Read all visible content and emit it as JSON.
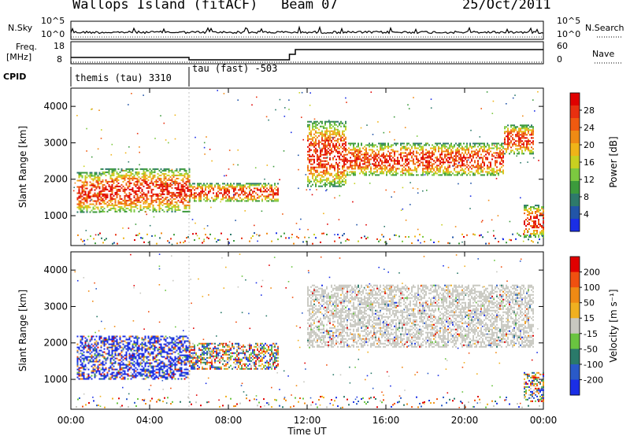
{
  "header": {
    "station": "Wallops Island (fitACF)",
    "beam": "Beam 07",
    "date": "25/Oct/2011"
  },
  "labels": {
    "nsky": "N.Sky",
    "freq": "Freq.",
    "mhz": "[MHz]",
    "cpid": "CPID",
    "nsearch": "N.Search",
    "nave": "Nave",
    "xlabel": "Time UT",
    "ylabel": "Slant Range [km]"
  },
  "noise_axis": {
    "top": "10^5",
    "bottom": "10^0"
  },
  "freq_axis": {
    "ticks": [
      "18",
      "8"
    ]
  },
  "nave_axis": {
    "ticks": [
      "60",
      "0"
    ]
  },
  "cpid": [
    {
      "label": "themis (tau) 3310",
      "start_hour": 0,
      "end_hour": 6
    },
    {
      "label": "tau (fast) -503",
      "start_hour": 6,
      "end_hour": 24
    }
  ],
  "chart_data": [
    {
      "type": "heatmap",
      "title": "",
      "xlabel": "Time UT",
      "ylabel": "Slant Range [km]",
      "x_ticks": [
        "00:00",
        "04:00",
        "08:00",
        "12:00",
        "16:00",
        "20:00",
        "00:00"
      ],
      "xlim_hours": [
        0,
        24
      ],
      "y_ticks": [
        "1000",
        "2000",
        "3000",
        "4000"
      ],
      "ylim_km": [
        180,
        4500
      ],
      "colorbar": {
        "label": "Power [dB]",
        "ticks": [
          "4",
          "8",
          "12",
          "16",
          "20",
          "24",
          "28"
        ],
        "colors": [
          "#1a2ee6",
          "#2255a8",
          "#2e7a6b",
          "#3c9a3c",
          "#7cc840",
          "#c8d020",
          "#f0b418",
          "#f08a14",
          "#f05a10",
          "#e83010",
          "#e00000"
        ]
      },
      "echo_bands": [
        {
          "start_hour": 0.3,
          "end_hour": 1.5,
          "range_km": [
            1100,
            2200
          ]
        },
        {
          "start_hour": 1.5,
          "end_hour": 6.0,
          "range_km": [
            1100,
            2300
          ]
        },
        {
          "start_hour": 6.0,
          "end_hour": 10.5,
          "range_km": [
            1400,
            1900
          ]
        },
        {
          "start_hour": 12.0,
          "end_hour": 14.0,
          "range_km": [
            1800,
            3600
          ]
        },
        {
          "start_hour": 14.0,
          "end_hour": 22.0,
          "range_km": [
            2100,
            3000
          ]
        },
        {
          "start_hour": 22.0,
          "end_hour": 23.5,
          "range_km": [
            2700,
            3500
          ]
        },
        {
          "start_hour": 23.0,
          "end_hour": 24.0,
          "range_km": [
            400,
            1300
          ]
        }
      ]
    },
    {
      "type": "heatmap",
      "title": "",
      "xlabel": "Time UT",
      "ylabel": "Slant Range [km]",
      "x_ticks": [
        "00:00",
        "04:00",
        "08:00",
        "12:00",
        "16:00",
        "20:00",
        "00:00"
      ],
      "xlim_hours": [
        0,
        24
      ],
      "y_ticks": [
        "1000",
        "2000",
        "3000",
        "4000"
      ],
      "ylim_km": [
        180,
        4500
      ],
      "colorbar": {
        "label": "Velocity [m s⁻¹]",
        "ticks": [
          "200",
          "100",
          "50",
          "15",
          "-15",
          "-50",
          "-100",
          "-200"
        ],
        "colors": [
          "#1a2ee6",
          "#2a5ac8",
          "#2a7a6a",
          "#6ac440",
          "#c8c8c0",
          "#f0b020",
          "#f08a14",
          "#f05010",
          "#e00000"
        ]
      },
      "echo_bands": [
        {
          "start_hour": 0.3,
          "end_hour": 6.0,
          "range_km": [
            1000,
            2200
          ]
        },
        {
          "start_hour": 6.0,
          "end_hour": 10.5,
          "range_km": [
            1300,
            2000
          ]
        },
        {
          "start_hour": 12.0,
          "end_hour": 23.5,
          "range_km": [
            1900,
            3600
          ]
        },
        {
          "start_hour": 23.0,
          "end_hour": 24.0,
          "range_km": [
            400,
            1200
          ]
        }
      ]
    }
  ]
}
